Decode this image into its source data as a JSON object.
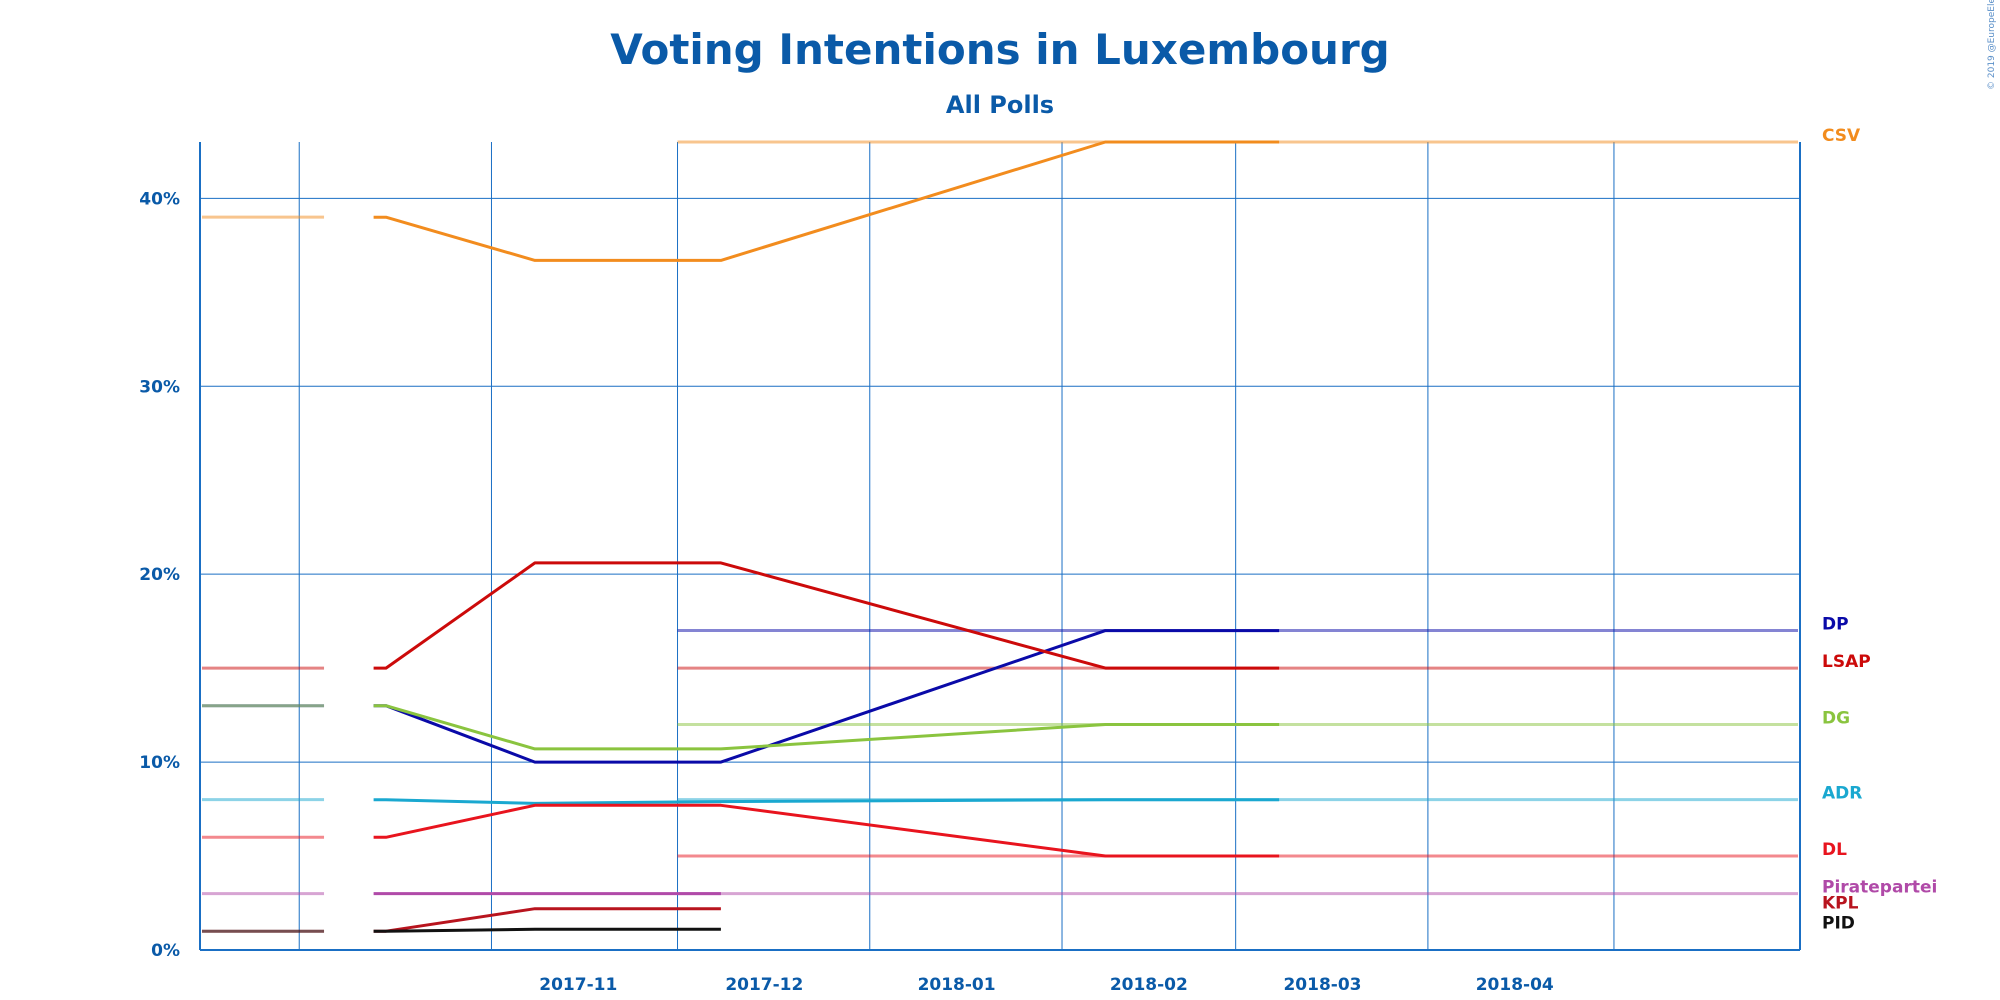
{
  "chart_data": {
    "type": "line",
    "title": "Voting Intentions in Luxembourg",
    "subtitle": "All Polls",
    "copyright": "© 2019 @EuropeElects",
    "xlabel": "",
    "ylabel": "",
    "ylim": [
      0,
      43
    ],
    "yticks": [
      0,
      10,
      20,
      30,
      40
    ],
    "ytick_labels": [
      "0%",
      "10%",
      "20%",
      "30%",
      "40%"
    ],
    "x_range": [
      "2017-09-15",
      "2018-05-31"
    ],
    "xticks": [
      "2017-11",
      "2017-12",
      "2018-01",
      "2018-02",
      "2018-03",
      "2018-04"
    ],
    "grid": true,
    "election_result_dates": [
      "2017-09-15",
      "2017-10-05"
    ],
    "series": [
      {
        "name": "CSV",
        "color": "#f28c1e",
        "prev": 39,
        "values": [
          [
            "2017-10-15",
            39
          ],
          [
            "2017-11-08",
            36.7
          ],
          [
            "2017-12-08",
            36.7
          ],
          [
            "2018-02-08",
            43
          ],
          [
            "2018-03-08",
            43
          ]
        ],
        "result": 43
      },
      {
        "name": "DP",
        "color": "#0a0aa8",
        "prev": 13,
        "values": [
          [
            "2017-10-15",
            13
          ],
          [
            "2017-11-08",
            10
          ],
          [
            "2017-12-08",
            10
          ],
          [
            "2018-02-08",
            17
          ],
          [
            "2018-03-08",
            17
          ]
        ],
        "result": 17
      },
      {
        "name": "LSAP",
        "color": "#cc0a0a",
        "prev": 15,
        "values": [
          [
            "2017-10-15",
            15
          ],
          [
            "2017-11-08",
            20.6
          ],
          [
            "2017-12-08",
            20.6
          ],
          [
            "2018-02-08",
            15
          ],
          [
            "2018-03-08",
            15
          ]
        ],
        "result": 15
      },
      {
        "name": "DG",
        "color": "#8ac43f",
        "prev": 13,
        "values": [
          [
            "2017-10-15",
            13
          ],
          [
            "2017-11-08",
            10.7
          ],
          [
            "2017-12-08",
            10.7
          ],
          [
            "2018-02-08",
            12
          ],
          [
            "2018-03-08",
            12
          ]
        ],
        "result": 12
      },
      {
        "name": "ADR",
        "color": "#1aa8d0",
        "prev": 8,
        "values": [
          [
            "2017-10-15",
            8
          ],
          [
            "2017-11-08",
            7.8
          ],
          [
            "2017-12-08",
            7.9
          ],
          [
            "2018-02-08",
            8
          ],
          [
            "2018-03-08",
            8
          ]
        ],
        "result": 8
      },
      {
        "name": "DL",
        "color": "#e8141e",
        "prev": 6,
        "values": [
          [
            "2017-10-15",
            6
          ],
          [
            "2017-11-08",
            7.7
          ],
          [
            "2017-12-08",
            7.7
          ],
          [
            "2018-02-08",
            5
          ],
          [
            "2018-03-08",
            5
          ]
        ],
        "result": 5
      },
      {
        "name": "Piratepartei",
        "color": "#b04aa8",
        "prev": 3,
        "values": [
          [
            "2017-10-15",
            3
          ],
          [
            "2017-11-08",
            3
          ],
          [
            "2017-12-08",
            3
          ]
        ],
        "result": 3
      },
      {
        "name": "KPL",
        "color": "#b8141e",
        "prev": 1,
        "values": [
          [
            "2017-10-15",
            1
          ],
          [
            "2017-11-08",
            2.2
          ],
          [
            "2017-12-08",
            2.2
          ]
        ],
        "result": null
      },
      {
        "name": "PID",
        "color": "#111111",
        "prev": 1,
        "values": [
          [
            "2017-10-15",
            1
          ],
          [
            "2017-11-08",
            1.1
          ],
          [
            "2017-12-08",
            1.1
          ]
        ],
        "result": null
      }
    ]
  }
}
